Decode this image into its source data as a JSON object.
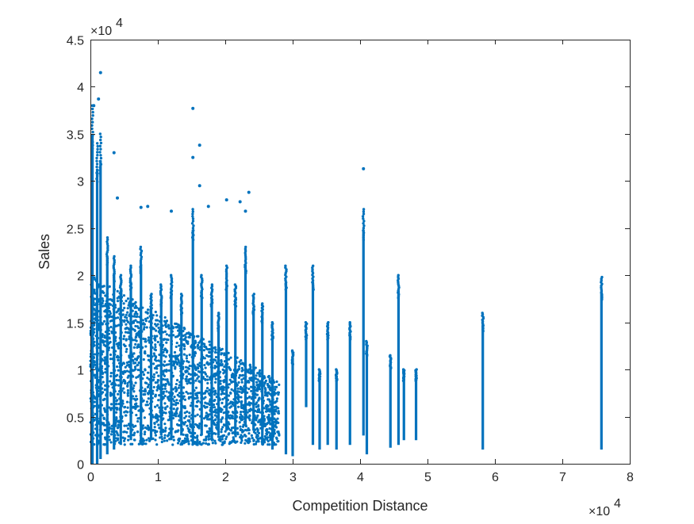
{
  "chart_data": {
    "type": "scatter",
    "title": "",
    "xlabel": "Competition Distance",
    "ylabel": "Sales",
    "x_multiplier_label": "×10",
    "x_multiplier_exponent": "4",
    "y_multiplier_label": "×10",
    "y_multiplier_exponent": "4",
    "xlim": [
      0,
      8
    ],
    "ylim": [
      0,
      4.5
    ],
    "x_ticks": [
      0,
      1,
      2,
      3,
      4,
      5,
      6,
      7,
      8
    ],
    "x_tick_labels": [
      "0",
      "1",
      "2",
      "3",
      "4",
      "5",
      "6",
      "7",
      "8"
    ],
    "y_ticks": [
      0,
      0.5,
      1,
      1.5,
      2,
      2.5,
      3,
      3.5,
      4,
      4.5
    ],
    "y_tick_labels": [
      "0",
      "0.5",
      "1",
      "1.5",
      "2",
      "2.5",
      "3",
      "3.5",
      "4",
      "4.5"
    ],
    "grid": false,
    "legend": "none",
    "marker_color": "#0072BD",
    "dense_region": {
      "x_range": [
        0,
        2.8
      ],
      "y_range": [
        0.2,
        2.0
      ],
      "description_only": false
    },
    "stripes": [
      {
        "x": 0.03,
        "y_min": 0.0,
        "y_max": 3.8
      },
      {
        "x": 0.1,
        "y_min": 0.0,
        "y_max": 3.4
      },
      {
        "x": 0.15,
        "y_min": 0.05,
        "y_max": 3.5
      },
      {
        "x": 0.25,
        "y_min": 0.1,
        "y_max": 2.4
      },
      {
        "x": 0.35,
        "y_min": 0.15,
        "y_max": 2.2
      },
      {
        "x": 0.45,
        "y_min": 0.2,
        "y_max": 2.0
      },
      {
        "x": 0.6,
        "y_min": 0.25,
        "y_max": 2.1
      },
      {
        "x": 0.75,
        "y_min": 0.2,
        "y_max": 2.3
      },
      {
        "x": 0.9,
        "y_min": 0.25,
        "y_max": 1.8
      },
      {
        "x": 1.05,
        "y_min": 0.3,
        "y_max": 1.9
      },
      {
        "x": 1.2,
        "y_min": 0.25,
        "y_max": 2.0
      },
      {
        "x": 1.35,
        "y_min": 0.3,
        "y_max": 1.8
      },
      {
        "x": 1.52,
        "y_min": 0.2,
        "y_max": 2.7
      },
      {
        "x": 1.65,
        "y_min": 0.3,
        "y_max": 2.0
      },
      {
        "x": 1.8,
        "y_min": 0.25,
        "y_max": 1.9
      },
      {
        "x": 1.9,
        "y_min": 0.3,
        "y_max": 1.6
      },
      {
        "x": 2.02,
        "y_min": 0.35,
        "y_max": 2.1
      },
      {
        "x": 2.15,
        "y_min": 0.3,
        "y_max": 1.9
      },
      {
        "x": 2.3,
        "y_min": 0.4,
        "y_max": 2.3
      },
      {
        "x": 2.42,
        "y_min": 0.35,
        "y_max": 1.8
      },
      {
        "x": 2.55,
        "y_min": 0.2,
        "y_max": 1.7
      },
      {
        "x": 2.7,
        "y_min": 0.15,
        "y_max": 1.5
      },
      {
        "x": 2.9,
        "y_min": 0.1,
        "y_max": 2.1
      },
      {
        "x": 3.0,
        "y_min": 0.08,
        "y_max": 1.2
      },
      {
        "x": 3.2,
        "y_min": 0.6,
        "y_max": 1.5
      },
      {
        "x": 3.3,
        "y_min": 0.2,
        "y_max": 2.1
      },
      {
        "x": 3.4,
        "y_min": 0.15,
        "y_max": 1.0
      },
      {
        "x": 3.52,
        "y_min": 0.2,
        "y_max": 1.5
      },
      {
        "x": 3.65,
        "y_min": 0.15,
        "y_max": 1.0
      },
      {
        "x": 3.85,
        "y_min": 0.2,
        "y_max": 1.5
      },
      {
        "x": 4.05,
        "y_min": 0.3,
        "y_max": 2.7
      },
      {
        "x": 4.1,
        "y_min": 0.1,
        "y_max": 1.3
      },
      {
        "x": 4.45,
        "y_min": 0.17,
        "y_max": 1.15
      },
      {
        "x": 4.57,
        "y_min": 0.2,
        "y_max": 2.0
      },
      {
        "x": 4.65,
        "y_min": 0.25,
        "y_max": 1.0
      },
      {
        "x": 4.83,
        "y_min": 0.25,
        "y_max": 1.0
      },
      {
        "x": 5.82,
        "y_min": 0.15,
        "y_max": 1.6
      },
      {
        "x": 7.58,
        "y_min": 0.15,
        "y_max": 1.98
      }
    ],
    "outliers": [
      {
        "x": 0.15,
        "y": 4.15
      },
      {
        "x": 0.05,
        "y": 3.8
      },
      {
        "x": 0.12,
        "y": 3.87
      },
      {
        "x": 0.35,
        "y": 3.3
      },
      {
        "x": 1.52,
        "y": 3.77
      },
      {
        "x": 1.62,
        "y": 3.38
      },
      {
        "x": 1.52,
        "y": 3.25
      },
      {
        "x": 1.62,
        "y": 2.95
      },
      {
        "x": 2.02,
        "y": 2.8
      },
      {
        "x": 2.35,
        "y": 2.88
      },
      {
        "x": 4.05,
        "y": 3.13
      },
      {
        "x": 0.85,
        "y": 2.73
      },
      {
        "x": 1.2,
        "y": 2.68
      },
      {
        "x": 1.75,
        "y": 2.73
      },
      {
        "x": 2.22,
        "y": 2.78
      },
      {
        "x": 2.3,
        "y": 2.68
      },
      {
        "x": 0.4,
        "y": 2.82
      },
      {
        "x": 0.75,
        "y": 2.72
      }
    ]
  }
}
